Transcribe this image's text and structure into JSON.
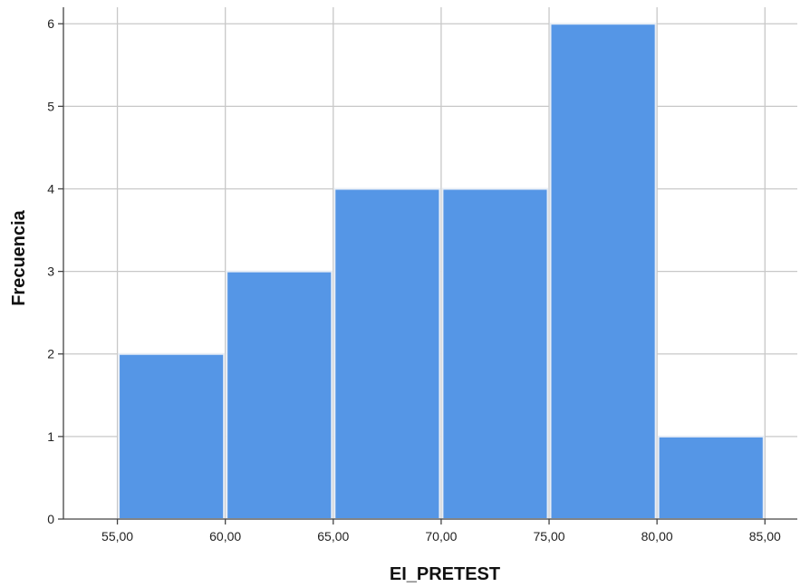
{
  "chart_data": {
    "type": "bar",
    "subtype": "histogram",
    "bins": [
      {
        "from": 55,
        "to": 60,
        "count": 2
      },
      {
        "from": 60,
        "to": 65,
        "count": 3
      },
      {
        "from": 65,
        "to": 70,
        "count": 4
      },
      {
        "from": 70,
        "to": 75,
        "count": 4
      },
      {
        "from": 75,
        "to": 80,
        "count": 6
      },
      {
        "from": 80,
        "to": 85,
        "count": 1
      }
    ],
    "xlabel": "EI_PRETEST",
    "ylabel": "Frecuencia",
    "x_ticks": [
      "55,00",
      "60,00",
      "65,00",
      "70,00",
      "75,00",
      "80,00",
      "85,00"
    ],
    "x_tick_values": [
      55,
      60,
      65,
      70,
      75,
      80,
      85
    ],
    "y_ticks": [
      "0",
      "1",
      "2",
      "3",
      "4",
      "5",
      "6"
    ],
    "y_tick_values": [
      0,
      1,
      2,
      3,
      4,
      5,
      6
    ],
    "xlim": [
      52.5,
      86.5
    ],
    "ylim": [
      0,
      6.2
    ],
    "grid": true,
    "legend": "none",
    "colors": {
      "bar_fill": "#5596e6",
      "bar_edge": "#e8eef6",
      "grid": "#c8c8c8",
      "axis": "#444444"
    }
  }
}
